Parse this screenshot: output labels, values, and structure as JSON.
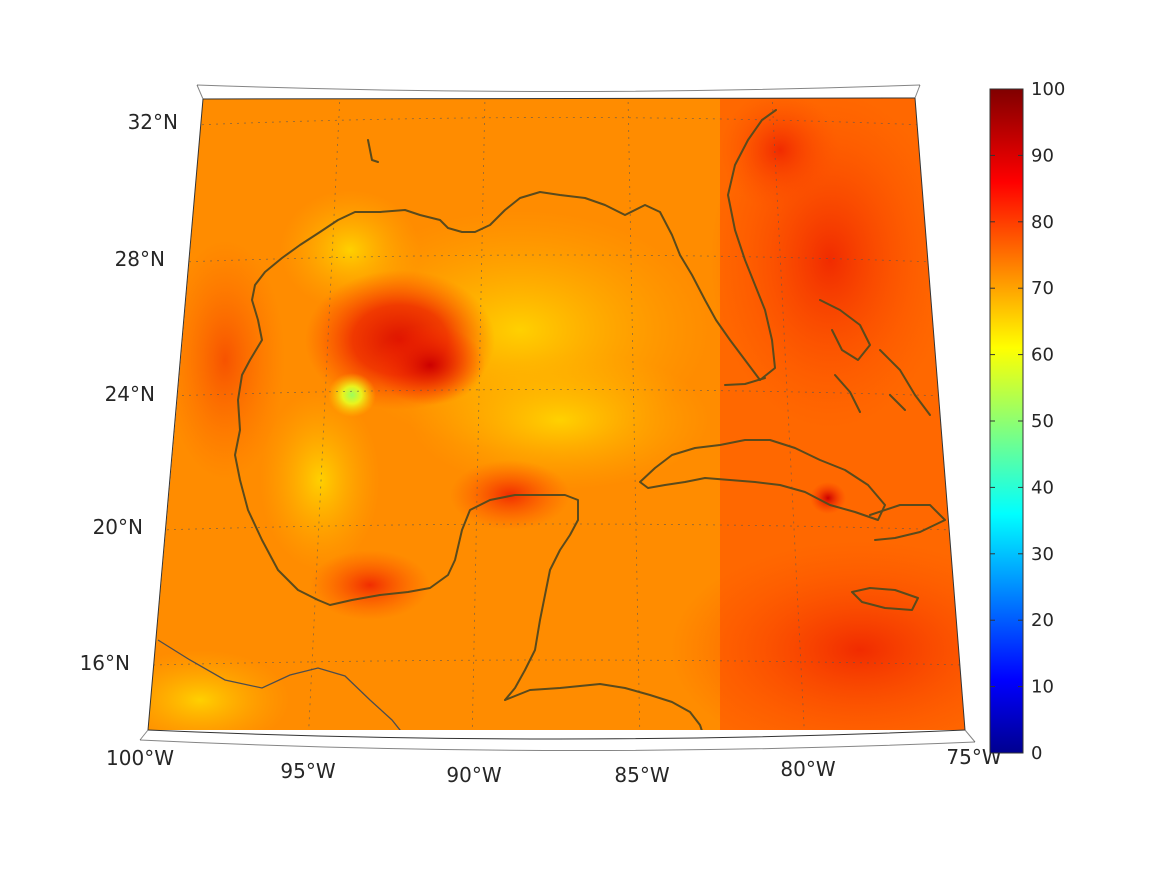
{
  "map": {
    "lon_range": [
      -100,
      -75
    ],
    "lat_range": [
      14,
      33
    ],
    "lat_ticks": [
      {
        "value": 32,
        "label": "32°N"
      },
      {
        "value": 28,
        "label": "28°N"
      },
      {
        "value": 24,
        "label": "24°N"
      },
      {
        "value": 20,
        "label": "20°N"
      },
      {
        "value": 16,
        "label": "16°N"
      }
    ],
    "lon_ticks": [
      {
        "value": -100,
        "label": "100°W"
      },
      {
        "value": -95,
        "label": "95°W"
      },
      {
        "value": -90,
        "label": "90°W"
      },
      {
        "value": -85,
        "label": "85°W"
      },
      {
        "value": -80,
        "label": "80°W"
      },
      {
        "value": -75,
        "label": "75°W"
      }
    ],
    "grid": true,
    "coastline_color": "#5a4a1c",
    "region": "Gulf of Mexico and Caribbean"
  },
  "colorbar": {
    "colormap": "jet",
    "min": 0,
    "max": 100,
    "ticks": [
      {
        "value": 100,
        "label": "100"
      },
      {
        "value": 90,
        "label": "90"
      },
      {
        "value": 80,
        "label": "80"
      },
      {
        "value": 70,
        "label": "70"
      },
      {
        "value": 60,
        "label": "60"
      },
      {
        "value": 50,
        "label": "50"
      },
      {
        "value": 40,
        "label": "40"
      },
      {
        "value": 30,
        "label": "30"
      },
      {
        "value": 20,
        "label": "20"
      },
      {
        "value": 10,
        "label": "10"
      },
      {
        "value": 0,
        "label": "0"
      }
    ]
  },
  "chart_data": {
    "type": "heatmap",
    "title": "",
    "xlabel": "",
    "ylabel": "",
    "x_range": [
      -100,
      -75
    ],
    "y_range": [
      14,
      33
    ],
    "value_range": [
      0,
      100
    ],
    "background_value": 75,
    "highlights": [
      {
        "lon": -92.5,
        "lat": 25.8,
        "value": 88
      },
      {
        "lon": -94.5,
        "lat": 24.0,
        "value": 56
      },
      {
        "lon": -79.2,
        "lat": 21.0,
        "value": 90
      },
      {
        "lon": -78.0,
        "lat": 17.0,
        "value": 84
      },
      {
        "lon": -78.5,
        "lat": 31.5,
        "value": 84
      },
      {
        "lon": -90.0,
        "lat": 25.0,
        "value": 70
      }
    ]
  }
}
